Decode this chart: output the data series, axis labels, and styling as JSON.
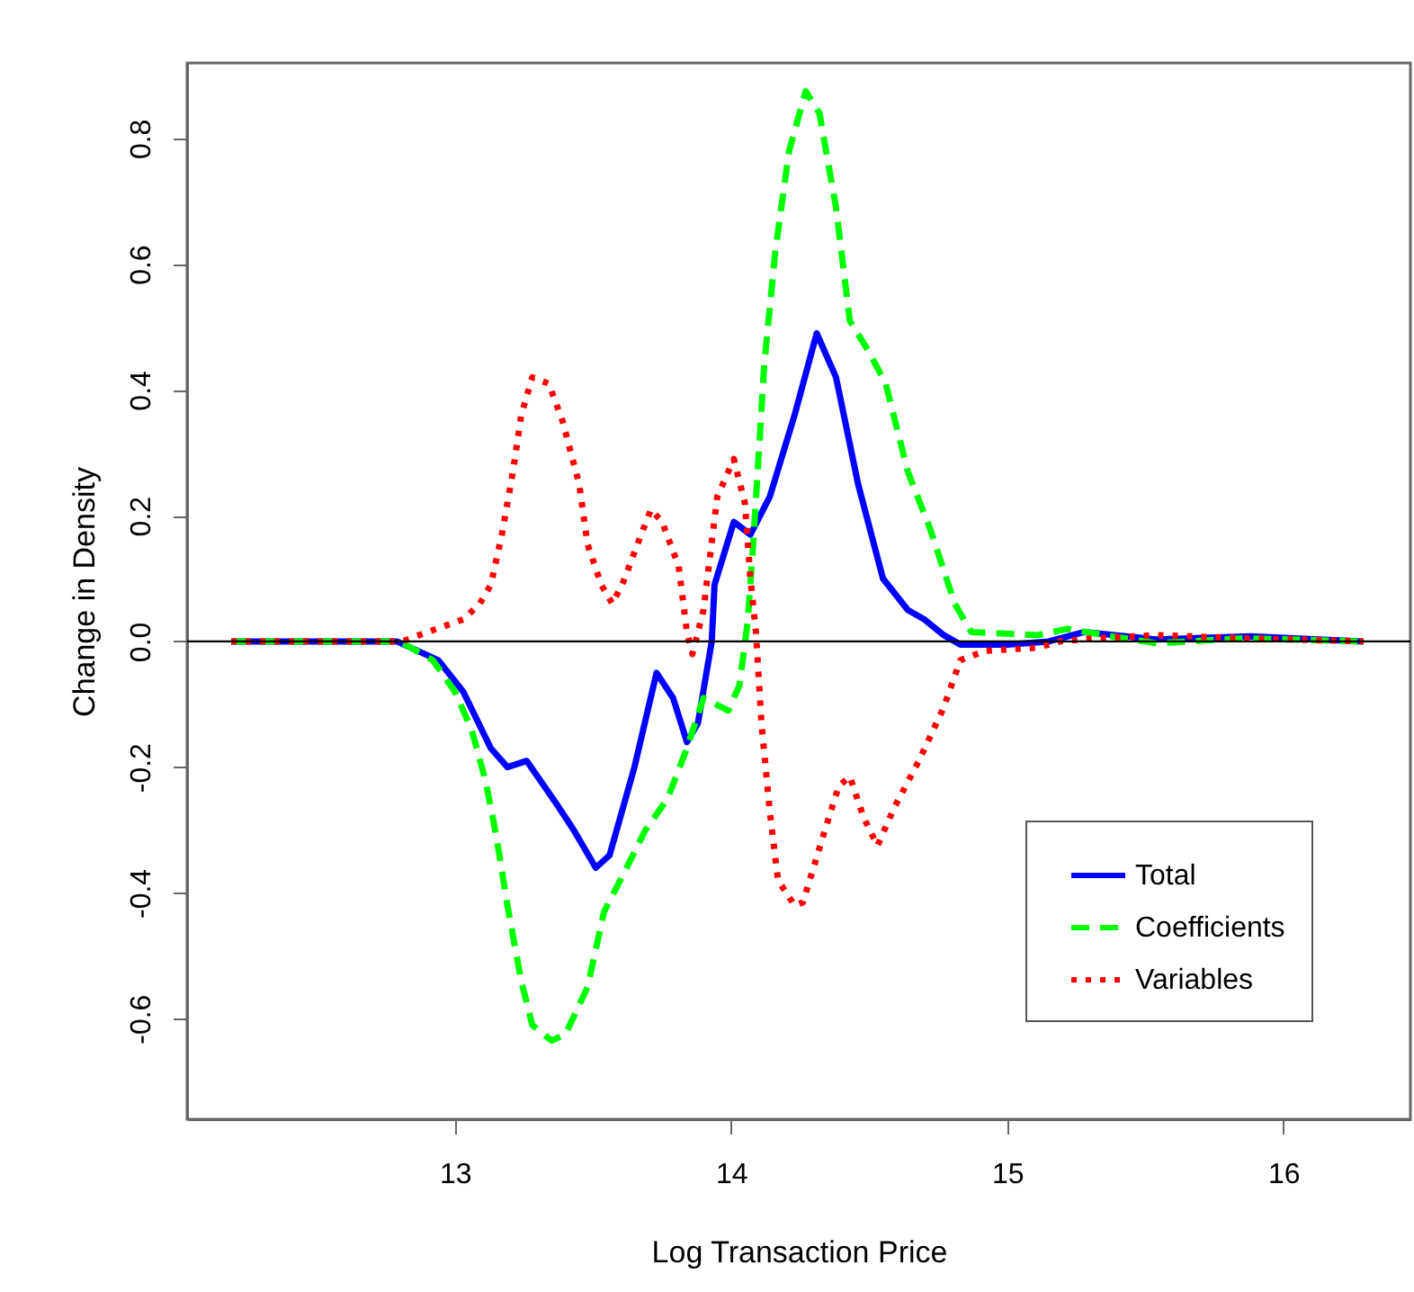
{
  "chart_data": {
    "type": "line",
    "xlabel": "Log Transaction Price",
    "ylabel": "Change in Density",
    "xlim": [
      12.03,
      16.46
    ],
    "ylim": [
      -0.76,
      0.92
    ],
    "xticks": [
      13,
      14,
      15,
      16
    ],
    "yticks": [
      {
        "value": -0.6,
        "label": "-0.6"
      },
      {
        "value": -0.4,
        "label": "-0.4"
      },
      {
        "value": -0.2,
        "label": "-0.2"
      },
      {
        "value": 0,
        "label": "0.0"
      },
      {
        "value": 0.2,
        "label": "0.2"
      },
      {
        "value": 0.4,
        "label": "0.4"
      },
      {
        "value": 0.6,
        "label": "0.6"
      },
      {
        "value": 0.8,
        "label": "0.8"
      }
    ],
    "grid": false,
    "legend": "bottom right",
    "ref_lines": [
      {
        "axis": "y",
        "value": 0,
        "color": "#000000"
      }
    ],
    "series": [
      {
        "name": "Total",
        "color": "#0000ff",
        "line_style": "solid",
        "x": [
          12.19,
          12.79,
          12.94,
          13.03,
          13.13,
          13.19,
          13.26,
          13.37,
          13.43,
          13.51,
          13.56,
          13.65,
          13.73,
          13.79,
          13.84,
          13.88,
          13.93,
          13.94,
          14.01,
          14.07,
          14.14,
          14.23,
          14.31,
          14.38,
          14.46,
          14.55,
          14.64,
          14.7,
          14.77,
          14.83,
          15.0,
          15.15,
          15.28,
          15.39,
          15.54,
          15.88,
          16.29
        ],
        "values": [
          0,
          0,
          -0.03,
          -0.08,
          -0.17,
          -0.2,
          -0.19,
          -0.26,
          -0.3,
          -0.36,
          -0.34,
          -0.2,
          -0.05,
          -0.09,
          -0.16,
          -0.13,
          0.0,
          0.09,
          0.19,
          0.17,
          0.23,
          0.36,
          0.49,
          0.42,
          0.25,
          0.1,
          0.05,
          0.035,
          0.01,
          -0.005,
          -0.005,
          0,
          0.015,
          0.01,
          0.003,
          0.008,
          0
        ]
      },
      {
        "name": "Coefficients",
        "color": "#00ff00",
        "line_style": "dashed",
        "x": [
          12.19,
          12.8,
          12.92,
          13.0,
          13.06,
          13.11,
          13.15,
          13.19,
          13.24,
          13.28,
          13.35,
          13.4,
          13.48,
          13.54,
          13.61,
          13.69,
          13.77,
          13.84,
          13.9,
          13.99,
          14.03,
          14.06,
          14.08,
          14.12,
          14.16,
          14.21,
          14.27,
          14.32,
          14.38,
          14.43,
          14.5,
          14.56,
          14.64,
          14.72,
          14.81,
          14.87,
          15.11,
          15.22,
          15.35,
          15.54,
          15.86,
          16.29
        ],
        "values": [
          0,
          0,
          -0.03,
          -0.08,
          -0.14,
          -0.22,
          -0.31,
          -0.42,
          -0.54,
          -0.61,
          -0.635,
          -0.625,
          -0.55,
          -0.43,
          -0.37,
          -0.3,
          -0.25,
          -0.17,
          -0.09,
          -0.11,
          -0.07,
          0.03,
          0.155,
          0.44,
          0.62,
          0.78,
          0.875,
          0.84,
          0.69,
          0.51,
          0.46,
          0.41,
          0.27,
          0.18,
          0.06,
          0.015,
          0.01,
          0.02,
          0.01,
          -0.003,
          0.005,
          0
        ]
      },
      {
        "name": "Variables",
        "color": "#ff0000",
        "line_style": "dotted",
        "x": [
          12.19,
          12.81,
          12.87,
          13.03,
          13.09,
          13.13,
          13.17,
          13.21,
          13.24,
          13.28,
          13.34,
          13.39,
          13.45,
          13.48,
          13.53,
          13.57,
          13.61,
          13.67,
          13.71,
          13.75,
          13.81,
          13.84,
          13.86,
          13.9,
          13.95,
          14.01,
          14.05,
          14.07,
          14.09,
          14.11,
          14.14,
          14.17,
          14.23,
          14.26,
          14.34,
          14.39,
          14.43,
          14.48,
          14.53,
          14.59,
          14.68,
          14.77,
          14.83,
          14.92,
          15.11,
          15.19,
          15.32,
          15.54,
          15.86,
          16.29
        ],
        "values": [
          0,
          0,
          0.01,
          0.035,
          0.06,
          0.09,
          0.17,
          0.27,
          0.36,
          0.42,
          0.41,
          0.35,
          0.25,
          0.155,
          0.09,
          0.06,
          0.095,
          0.165,
          0.21,
          0.19,
          0.12,
          0.015,
          -0.02,
          0.05,
          0.23,
          0.29,
          0.22,
          0.1,
          0.015,
          -0.13,
          -0.27,
          -0.38,
          -0.42,
          -0.415,
          -0.3,
          -0.23,
          -0.215,
          -0.28,
          -0.325,
          -0.265,
          -0.19,
          -0.105,
          -0.03,
          -0.015,
          -0.01,
          0,
          0.005,
          0.01,
          0.005,
          0
        ]
      }
    ]
  }
}
